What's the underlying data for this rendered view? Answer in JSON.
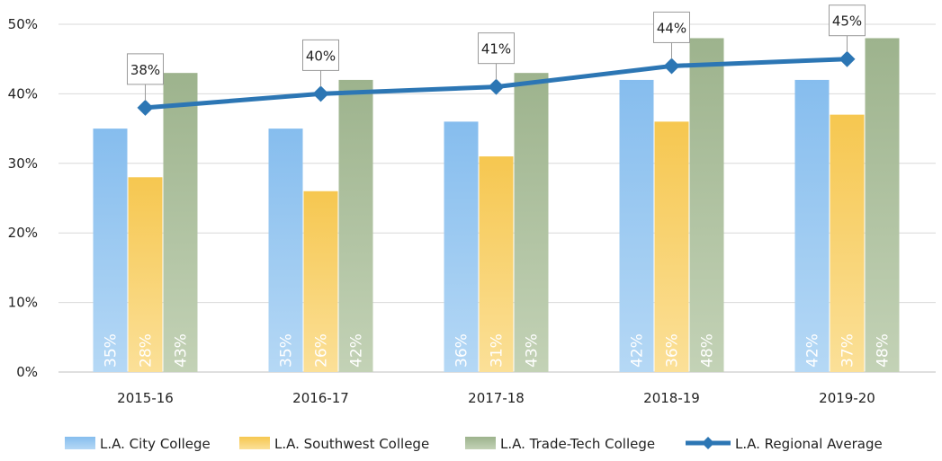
{
  "chart_data": {
    "type": "bar",
    "categories": [
      "2015-16",
      "2016-17",
      "2017-18",
      "2018-19",
      "2019-20"
    ],
    "ylim": [
      0,
      50
    ],
    "yticks": [
      0,
      10,
      20,
      30,
      40,
      50
    ],
    "ytick_labels": [
      "0%",
      "10%",
      "20%",
      "30%",
      "40%",
      "50%"
    ],
    "grid": true,
    "legend_position": "bottom",
    "series": [
      {
        "name": "L.A. City College",
        "kind": "bar",
        "color": "#8ec2ee",
        "values": [
          35,
          35,
          36,
          42,
          42
        ],
        "labels": [
          "35%",
          "35%",
          "36%",
          "42%",
          "42%"
        ]
      },
      {
        "name": "L.A. Southwest College",
        "kind": "bar",
        "color": "#f7cc5d",
        "values": [
          28,
          26,
          31,
          36,
          37
        ],
        "labels": [
          "28%",
          "26%",
          "31%",
          "36%",
          "37%"
        ]
      },
      {
        "name": "L.A. Trade-Tech College",
        "kind": "bar",
        "color": "#a6bb98",
        "values": [
          43,
          42,
          43,
          48,
          48
        ],
        "labels": [
          "43%",
          "42%",
          "43%",
          "48%",
          "48%"
        ]
      },
      {
        "name": "L.A. Regional Average",
        "kind": "line",
        "color": "#2c76b4",
        "values": [
          38,
          40,
          41,
          44,
          45
        ],
        "labels": [
          "38%",
          "40%",
          "41%",
          "44%",
          "45%"
        ]
      }
    ]
  }
}
